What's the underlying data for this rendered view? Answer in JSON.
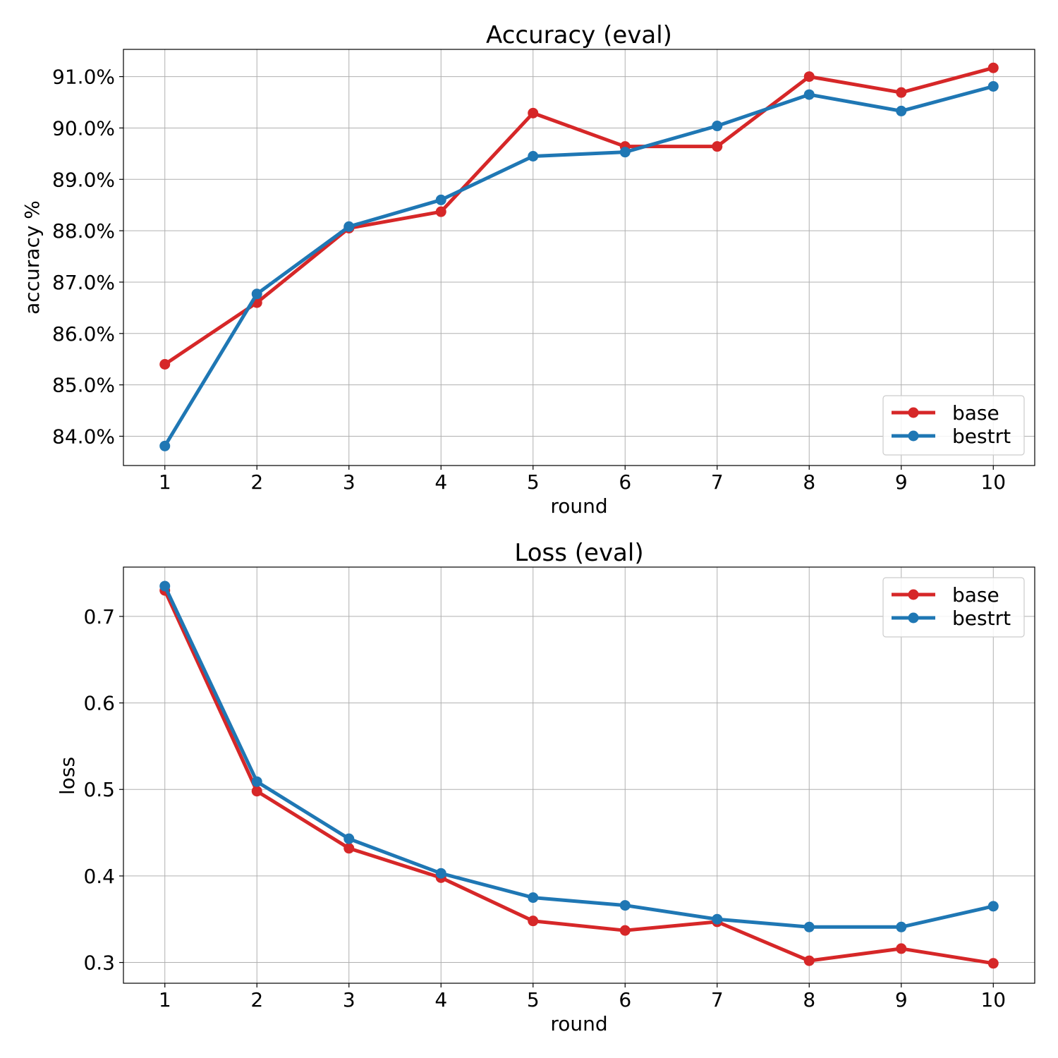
{
  "chart_data": [
    {
      "type": "line",
      "title": "Accuracy (eval)",
      "xlabel": "round",
      "ylabel": "accuracy %",
      "x": [
        1,
        2,
        3,
        4,
        5,
        6,
        7,
        8,
        9,
        10
      ],
      "xlim": [
        0.55,
        10.45
      ],
      "ylim": [
        83.43,
        91.53
      ],
      "yticks": [
        84.0,
        85.0,
        86.0,
        87.0,
        88.0,
        89.0,
        90.0,
        91.0
      ],
      "ytick_format": "percent1",
      "grid": true,
      "legend_position": "lower-right",
      "series": [
        {
          "name": "base",
          "color": "#d62728",
          "values": [
            85.4,
            86.6,
            88.05,
            88.37,
            90.29,
            89.64,
            89.64,
            91.0,
            90.69,
            91.17
          ]
        },
        {
          "name": "bestrt",
          "color": "#1f77b4",
          "values": [
            83.81,
            86.77,
            88.08,
            88.6,
            89.45,
            89.53,
            90.04,
            90.65,
            90.33,
            90.81
          ]
        }
      ]
    },
    {
      "type": "line",
      "title": "Loss (eval)",
      "xlabel": "round",
      "ylabel": "loss",
      "x": [
        1,
        2,
        3,
        4,
        5,
        6,
        7,
        8,
        9,
        10
      ],
      "xlim": [
        0.55,
        10.45
      ],
      "ylim": [
        0.276,
        0.757
      ],
      "yticks": [
        0.3,
        0.4,
        0.5,
        0.6,
        0.7
      ],
      "ytick_format": "fixed1",
      "grid": true,
      "legend_position": "upper-right",
      "series": [
        {
          "name": "base",
          "color": "#d62728",
          "values": [
            0.73,
            0.498,
            0.432,
            0.398,
            0.348,
            0.337,
            0.347,
            0.302,
            0.316,
            0.299
          ]
        },
        {
          "name": "bestrt",
          "color": "#1f77b4",
          "values": [
            0.735,
            0.509,
            0.443,
            0.403,
            0.375,
            0.366,
            0.35,
            0.341,
            0.341,
            0.365
          ]
        }
      ]
    }
  ]
}
